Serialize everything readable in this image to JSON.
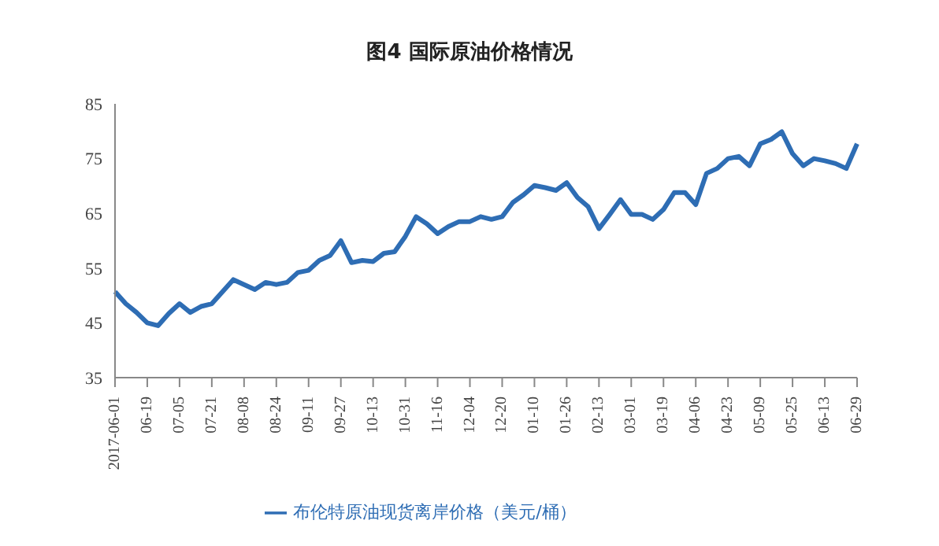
{
  "chart_data": {
    "type": "line",
    "title": "图4  国际原油价格情况",
    "categories": [
      "2017-06-01",
      null,
      null,
      "06-19",
      null,
      null,
      "07-05",
      null,
      null,
      "07-21",
      null,
      null,
      "08-08",
      null,
      null,
      "08-24",
      null,
      null,
      "09-11",
      null,
      null,
      "09-27",
      null,
      null,
      "10-13",
      null,
      null,
      "10-31",
      null,
      null,
      "11-16",
      null,
      null,
      "12-04",
      null,
      null,
      "12-20",
      null,
      null,
      "01-10",
      null,
      null,
      "01-26",
      null,
      null,
      "02-13",
      null,
      null,
      "03-01",
      null,
      null,
      "03-19",
      null,
      null,
      "04-06",
      null,
      null,
      "04-23",
      null,
      null,
      "05-09",
      null,
      null,
      "05-25",
      null,
      null,
      "06-13",
      null,
      null,
      "06-29"
    ],
    "series": [
      {
        "name": "布伦特原油现货离岸价格（美元/桶）",
        "color": "#2e6db4",
        "values": [
          50.7,
          48.5,
          46.9,
          45.0,
          44.5,
          46.7,
          48.5,
          46.9,
          48.0,
          48.5,
          50.7,
          52.9,
          52.0,
          51.1,
          52.4,
          52.0,
          52.4,
          54.2,
          54.6,
          56.4,
          57.3,
          60.0,
          56.0,
          56.4,
          56.2,
          57.7,
          58.0,
          60.8,
          64.4,
          63.1,
          61.3,
          62.6,
          63.5,
          63.5,
          64.4,
          63.9,
          64.4,
          67.0,
          68.4,
          70.1,
          69.7,
          69.2,
          70.6,
          67.9,
          66.2,
          62.2,
          64.8,
          67.5,
          64.8,
          64.8,
          63.9,
          65.7,
          68.8,
          68.8,
          66.6,
          72.3,
          73.2,
          75.0,
          75.4,
          73.7,
          77.7,
          78.5,
          79.9,
          75.9,
          73.7,
          75.0,
          74.6,
          74.1,
          73.2,
          77.7
        ]
      }
    ],
    "ylim": [
      35,
      85
    ],
    "yticks": [
      35,
      45,
      55,
      65,
      75,
      85
    ],
    "grid": false,
    "legend": "bottom",
    "marker": "none",
    "line_style": "solid"
  }
}
